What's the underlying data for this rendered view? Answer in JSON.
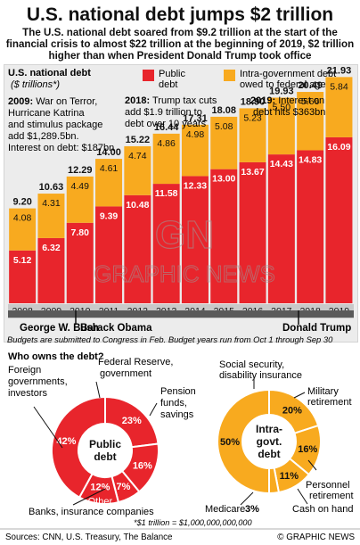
{
  "title": "U.S. national debt jumps $2 trillion",
  "subtitle_lines": [
    "The U.S. national debt soared from $9.2 trillion at the start of the",
    "financial crisis to almost $22 trillion at the beginning of 2019, $2 trillion",
    "higher than when President Donald Trump took office"
  ],
  "chart_data": {
    "type": "bar",
    "title": "U.S. national debt",
    "ylabel": "($ trillions*)",
    "categories": [
      "2008",
      "2009",
      "2010",
      "2011",
      "2012",
      "2013",
      "2014",
      "2015",
      "2016",
      "2017",
      "2018",
      "2019"
    ],
    "series": [
      {
        "name": "Public debt",
        "color": "#e8252c",
        "values": [
          5.12,
          6.32,
          7.8,
          9.39,
          10.48,
          11.58,
          12.33,
          13.0,
          13.67,
          14.43,
          14.83,
          16.09
        ]
      },
      {
        "name": "Intra-government debt owed to federal agencies",
        "color": "#f8aa1f",
        "values": [
          4.08,
          4.31,
          4.49,
          4.61,
          4.74,
          4.86,
          4.98,
          5.08,
          5.23,
          5.5,
          5.66,
          5.84
        ]
      }
    ],
    "totals": [
      "9.20",
      "10.63",
      "12.29",
      "14.00",
      "15.22",
      "16.44",
      "17.31",
      "18.08",
      "18.90",
      "19.93",
      "20.49",
      "21.93"
    ],
    "public_labels": [
      "5.12",
      "6.32",
      "7.80",
      "9.39",
      "10.48",
      "11.58",
      "12.33",
      "13.00",
      "13.67",
      "14.43",
      "14.83",
      "16.09"
    ],
    "intra_labels": [
      "4.08",
      "4.31",
      "4.49",
      "4.61",
      "4.74",
      "4.86",
      "4.98",
      "5.08",
      "5.23",
      "5.50",
      "5.66",
      "5.84"
    ],
    "ylim": [
      0,
      23
    ]
  },
  "legend": {
    "public": "Public debt",
    "intra": "Intra-government debt owed to federal agencies"
  },
  "annotations": [
    {
      "lines": [
        "2009: War on Terror,",
        "Hurricane Katrina",
        "and stimulus package",
        "add $1,289.5bn.",
        "Interest on debt: $187bn"
      ]
    },
    {
      "lines": [
        "2018: Trump tax cuts",
        "add $1.9 trillion to",
        "debt over 10 years"
      ]
    },
    {
      "lines": [
        "2019: Interest on",
        "debt hits $363bn"
      ]
    }
  ],
  "presidents": [
    "George W. Bush",
    "Barack Obama",
    "Donald Trump"
  ],
  "budget_note": "Budgets are submitted to Congress in Feb. Budget years run from Oct 1 through Sep 30",
  "owners": {
    "heading": "Who owns the debt?",
    "public_center": [
      "Public",
      "debt"
    ],
    "intra_center": [
      "Intra-",
      "govt.",
      "debt"
    ],
    "public_slices": [
      {
        "label": "Federal Reserve, government",
        "value": 23,
        "text": "23%"
      },
      {
        "label": "Pension funds, savings",
        "value": 16,
        "text": "16%"
      },
      {
        "label": "Other",
        "value": 7,
        "text": "7%"
      },
      {
        "label": "Other",
        "value": 12,
        "text": "12%"
      },
      {
        "label": "Foreign governments, investors",
        "value": 42,
        "text": "42%"
      }
    ],
    "intra_slices": [
      {
        "label": "Military retirement",
        "value": 20,
        "text": "20%"
      },
      {
        "label": "Personnel retirement",
        "value": 16,
        "text": "16%"
      },
      {
        "label": "Cash on hand",
        "value": 11,
        "text": "11%"
      },
      {
        "label": "Medicare",
        "value": 3,
        "text": "3%"
      },
      {
        "label": "Social security, disability insurance",
        "value": 50,
        "text": "50%"
      }
    ],
    "labels": {
      "foreign": [
        "Foreign",
        "governments,",
        "investors"
      ],
      "fed": [
        "Federal Reserve,",
        "government"
      ],
      "pension": [
        "Pension",
        "funds,",
        "savings"
      ],
      "banks": "Banks, insurance companies",
      "other_pct": "12%",
      "other": "Other",
      "seven": "7%",
      "social": [
        "Social security,",
        "disability insurance"
      ],
      "military": [
        "Military",
        "retirement"
      ],
      "personnel": [
        "Personnel",
        "retirement"
      ],
      "cash": "Cash on hand",
      "medicare": "Medicare",
      "medicare_pct": "3%"
    },
    "footnote": "*$1 trillion = $1,000,000,000,000"
  },
  "footer": {
    "sources": "Sources: CNN, U.S. Treasury, The Balance",
    "credit": "© GRAPHIC NEWS"
  },
  "watermark": {
    "logo": "GN",
    "text": "GRAPHIC NEWS"
  }
}
